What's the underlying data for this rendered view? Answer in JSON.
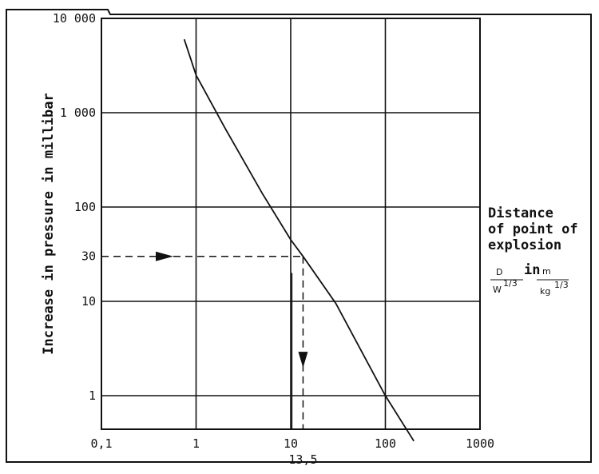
{
  "chart_data": {
    "type": "line",
    "xscale": "log",
    "yscale": "log",
    "xlim": [
      0.1,
      1000
    ],
    "ylim": [
      0.3,
      10000
    ],
    "x_ticks": [
      {
        "value": 0.1,
        "label": "0,1"
      },
      {
        "value": 1,
        "label": "1"
      },
      {
        "value": 10,
        "label": "10"
      },
      {
        "value": 100,
        "label": "100"
      },
      {
        "value": 1000,
        "label": "1000"
      }
    ],
    "y_ticks": [
      {
        "value": 10000,
        "label": "10 000"
      },
      {
        "value": 1000,
        "label": "1 000"
      },
      {
        "value": 100,
        "label": "100"
      },
      {
        "value": 30,
        "label": "30"
      },
      {
        "value": 10,
        "label": "10"
      },
      {
        "value": 1,
        "label": "1"
      }
    ],
    "ylabel": "Increase in pressure in millibar",
    "xlabel": [
      "Distance",
      "of point of",
      "explosion"
    ],
    "xunit": {
      "d": "D",
      "w": "W",
      "w_exp": "1/3",
      "in": "in",
      "m": "m",
      "kg": "kg",
      "kg_exp": "1/3"
    },
    "grid": true,
    "series": [
      {
        "x": [
          0.75,
          1.0,
          2.0,
          5.0,
          10.0,
          13.5,
          30.0,
          100.0,
          200.0
        ],
        "y": [
          6000,
          2500,
          700,
          140,
          45,
          30,
          9.5,
          1.0,
          0.33
        ]
      }
    ],
    "annotation": {
      "x_from": 0.1,
      "x_value": 13.5,
      "x_label": "13,5",
      "y_value": 30,
      "y_to": 0.3
    }
  }
}
